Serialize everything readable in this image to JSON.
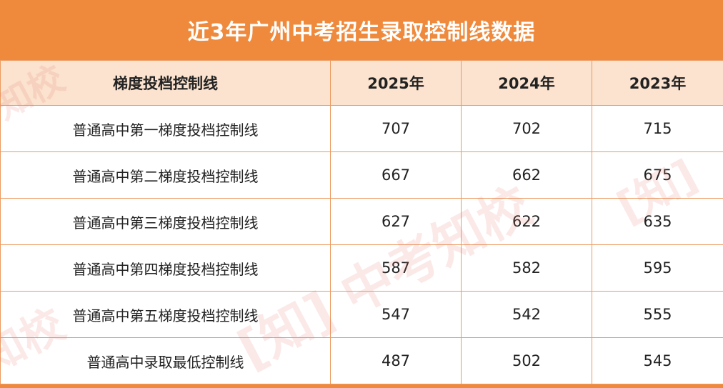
{
  "title": "近3年广州中考招生录取控制线数据",
  "table": {
    "headers": [
      "梯度投档控制线",
      "2025年",
      "2024年",
      "2023年"
    ],
    "rows": [
      {
        "label": "普通高中第一梯度投档控制线",
        "y2025": "707",
        "y2024": "702",
        "y2023": "715"
      },
      {
        "label": "普通高中第二梯度投档控制线",
        "y2025": "667",
        "y2024": "662",
        "y2023": "675"
      },
      {
        "label": "普通高中第三梯度投档控制线",
        "y2025": "627",
        "y2024": "622",
        "y2023": "635"
      },
      {
        "label": "普通高中第四梯度投档控制线",
        "y2025": "587",
        "y2024": "582",
        "y2023": "595"
      },
      {
        "label": "普通高中第五梯度投档控制线",
        "y2025": "547",
        "y2024": "542",
        "y2023": "555"
      },
      {
        "label": "普通高中录取最低控制线",
        "y2025": "487",
        "y2024": "502",
        "y2023": "545"
      }
    ]
  },
  "watermark": {
    "main": "[知] 中考知校",
    "side": "知校",
    "right": "[知]",
    "top_left": "知校"
  }
}
